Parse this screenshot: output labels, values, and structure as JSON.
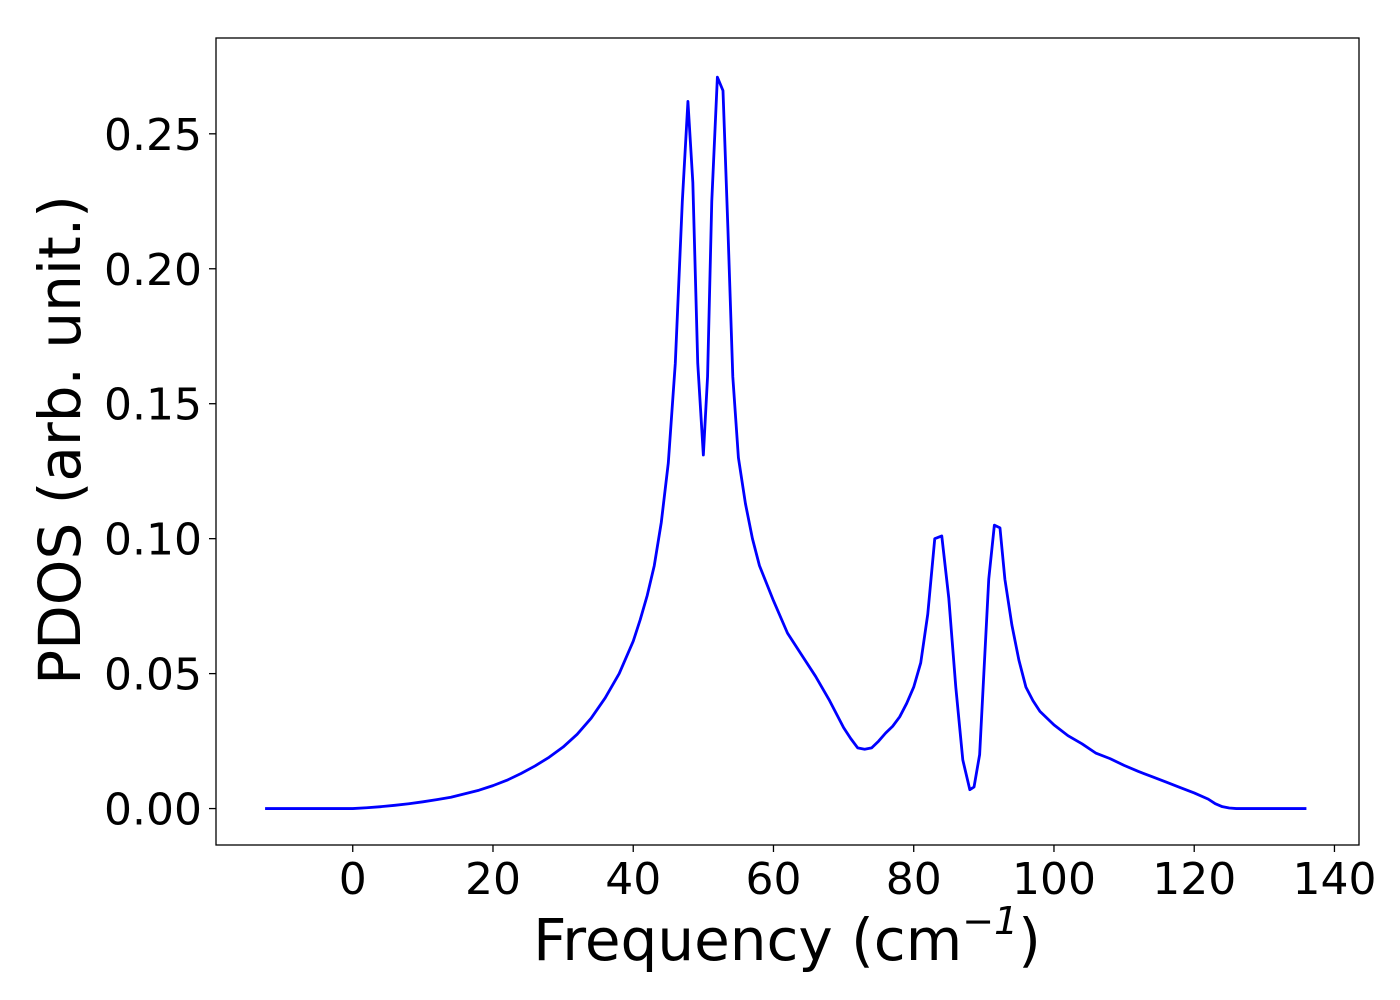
{
  "chart_data": {
    "type": "line",
    "title": "",
    "xlabel": "Frequency (cm",
    "xlabel_exponent": "−1",
    "xlabel_close": ")",
    "ylabel": "PDOS (arb. unit.)",
    "xlim": [
      -19.5,
      143.5
    ],
    "ylim": [
      -0.0135,
      0.2855
    ],
    "xticks": [
      0,
      20,
      40,
      60,
      80,
      100,
      120,
      140
    ],
    "xtick_labels": [
      "0",
      "20",
      "40",
      "60",
      "80",
      "100",
      "120",
      "140"
    ],
    "yticks": [
      0.0,
      0.05,
      0.1,
      0.15,
      0.2,
      0.25
    ],
    "ytick_labels": [
      "0.00",
      "0.05",
      "0.10",
      "0.15",
      "0.20",
      "0.25"
    ],
    "grid": false,
    "series": [
      {
        "color": "#0000ff",
        "x": [
          -12.5,
          -8,
          -4,
          0,
          2,
          4,
          6,
          8,
          10,
          12,
          14,
          16,
          18,
          20,
          22,
          24,
          26,
          28,
          30,
          32,
          34,
          36,
          38,
          40,
          41,
          42,
          43,
          44,
          45,
          46,
          47,
          47.8,
          48.5,
          49.2,
          50,
          50.6,
          51.2,
          52,
          52.8,
          53.5,
          54.2,
          55,
          56,
          57,
          58,
          60,
          62,
          64,
          66,
          68,
          70,
          71,
          72,
          73,
          74,
          75,
          76,
          77,
          78,
          79,
          80,
          81,
          82,
          83,
          84,
          85,
          86,
          87,
          88,
          88.6,
          89.4,
          90,
          90.7,
          91.5,
          92.3,
          93,
          94,
          95,
          96,
          97,
          98,
          100,
          102,
          104,
          106,
          108,
          110,
          112,
          114,
          116,
          118,
          120,
          122,
          123,
          124,
          125,
          126,
          128,
          130,
          132,
          134,
          136
        ],
        "y": [
          0.0,
          0.0,
          0.0,
          0.0,
          0.0003,
          0.0007,
          0.0012,
          0.0018,
          0.0025,
          0.0033,
          0.0042,
          0.0055,
          0.0068,
          0.0085,
          0.0105,
          0.013,
          0.0158,
          0.019,
          0.0228,
          0.0275,
          0.0335,
          0.041,
          0.05,
          0.062,
          0.07,
          0.079,
          0.09,
          0.106,
          0.128,
          0.165,
          0.225,
          0.262,
          0.232,
          0.165,
          0.131,
          0.16,
          0.225,
          0.271,
          0.266,
          0.215,
          0.16,
          0.13,
          0.113,
          0.1,
          0.09,
          0.077,
          0.065,
          0.057,
          0.049,
          0.04,
          0.03,
          0.026,
          0.0225,
          0.022,
          0.0225,
          0.025,
          0.028,
          0.0305,
          0.034,
          0.039,
          0.045,
          0.054,
          0.072,
          0.1,
          0.101,
          0.078,
          0.045,
          0.018,
          0.007,
          0.008,
          0.02,
          0.05,
          0.085,
          0.105,
          0.104,
          0.085,
          0.068,
          0.055,
          0.045,
          0.04,
          0.036,
          0.031,
          0.027,
          0.024,
          0.0205,
          0.0185,
          0.016,
          0.0138,
          0.0118,
          0.0098,
          0.0078,
          0.0058,
          0.0035,
          0.0018,
          0.0007,
          0.0002,
          0.0,
          0.0,
          0.0,
          0.0,
          0.0,
          0.0
        ]
      }
    ]
  }
}
